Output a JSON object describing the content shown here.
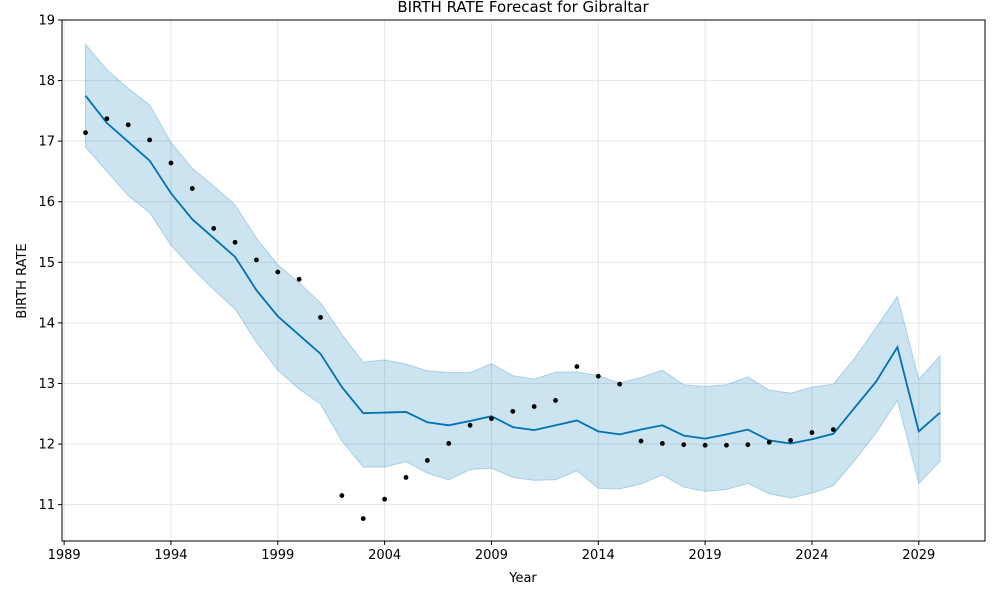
{
  "chart_data": {
    "type": "line",
    "title": "BIRTH RATE Forecast for Gibraltar",
    "xlabel": "Year",
    "ylabel": "BIRTH RATE",
    "xlim": [
      1988.9,
      2032.1
    ],
    "ylim": [
      10.4,
      19.0
    ],
    "x_ticks": [
      1989,
      1994,
      1999,
      2004,
      2009,
      2014,
      2019,
      2024,
      2029
    ],
    "y_ticks": [
      11,
      12,
      13,
      14,
      15,
      16,
      17,
      18,
      19
    ],
    "grid": true,
    "colors": {
      "forecast": "#0072B2",
      "interval": "#0072B2",
      "observed": "#000000"
    },
    "observed": {
      "x": [
        1990,
        1991,
        1992,
        1993,
        1994,
        1995,
        1996,
        1997,
        1998,
        1999,
        2000,
        2001,
        2002,
        2003,
        2004,
        2005,
        2006,
        2007,
        2008,
        2009,
        2010,
        2011,
        2012,
        2013,
        2014,
        2015,
        2016,
        2017,
        2018,
        2019,
        2020,
        2021,
        2022,
        2023,
        2024,
        2025
      ],
      "y": [
        17.14,
        17.37,
        17.27,
        17.02,
        16.64,
        16.22,
        15.56,
        15.33,
        15.04,
        14.84,
        14.72,
        14.09,
        11.15,
        10.77,
        11.09,
        11.45,
        11.73,
        12.01,
        12.31,
        12.42,
        12.54,
        12.62,
        12.72,
        13.28,
        13.12,
        12.99,
        12.05,
        12.01,
        11.99,
        11.98,
        11.98,
        11.99,
        12.03,
        12.06,
        12.19,
        12.24
      ]
    },
    "forecast": {
      "x": [
        1990,
        1991,
        1992,
        1993,
        1994,
        1995,
        1996,
        1997,
        1998,
        1999,
        2000,
        2001,
        2002,
        2003,
        2004,
        2005,
        2006,
        2007,
        2008,
        2009,
        2010,
        2011,
        2012,
        2013,
        2014,
        2015,
        2016,
        2017,
        2018,
        2019,
        2020,
        2021,
        2022,
        2023,
        2024,
        2025,
        2026,
        2027,
        2028,
        2029,
        2030
      ],
      "yhat": [
        17.75,
        17.3,
        16.99,
        16.68,
        16.14,
        15.71,
        15.4,
        15.09,
        14.54,
        14.11,
        13.8,
        13.49,
        12.94,
        12.51,
        12.52,
        12.53,
        12.36,
        12.31,
        12.38,
        12.46,
        12.28,
        12.23,
        12.31,
        12.39,
        12.21,
        12.16,
        12.24,
        12.31,
        12.14,
        12.09,
        12.16,
        12.24,
        12.06,
        12.01,
        12.08,
        12.17,
        12.6,
        13.03,
        13.6,
        12.21,
        12.52
      ],
      "lower": [
        16.9,
        16.5,
        16.1,
        15.82,
        15.28,
        14.9,
        14.55,
        14.23,
        13.68,
        13.22,
        12.91,
        12.66,
        12.05,
        11.62,
        11.62,
        11.71,
        11.52,
        11.41,
        11.58,
        11.6,
        11.45,
        11.4,
        11.41,
        11.56,
        11.27,
        11.26,
        11.34,
        11.49,
        11.29,
        11.22,
        11.25,
        11.35,
        11.18,
        11.11,
        11.19,
        11.31,
        11.73,
        12.18,
        12.72,
        11.35,
        11.72
      ],
      "upper": [
        18.6,
        18.18,
        17.87,
        17.6,
        16.98,
        16.55,
        16.26,
        15.95,
        15.4,
        14.96,
        14.66,
        14.33,
        13.81,
        13.35,
        13.39,
        13.32,
        13.21,
        13.18,
        13.18,
        13.33,
        13.13,
        13.07,
        13.19,
        13.19,
        13.13,
        13.01,
        13.1,
        13.22,
        12.98,
        12.95,
        12.98,
        13.11,
        12.89,
        12.84,
        12.94,
        12.99,
        13.42,
        13.92,
        14.44,
        13.07,
        13.46
      ]
    }
  }
}
